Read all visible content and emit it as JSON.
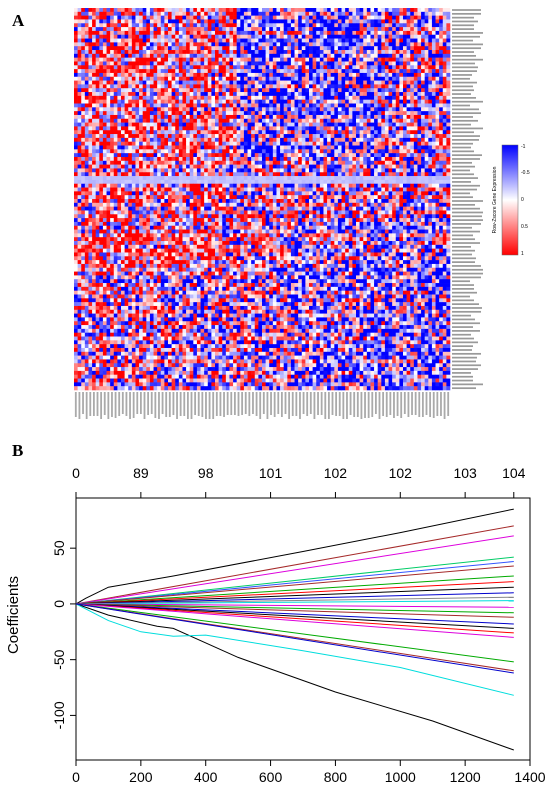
{
  "panel_labels": {
    "a": "A",
    "b": "B"
  },
  "colors": {
    "low": "#ff0000",
    "mid": "#ffffff",
    "high": "#0000ff",
    "axis": "#000000"
  },
  "chart_data": [
    {
      "type": "heatmap",
      "panel": "A",
      "rows": 100,
      "columns": 104,
      "color_scale": {
        "min": -1,
        "mid": 0,
        "max": 1,
        "colors": [
          "#ff0000",
          "#ffffff",
          "#0000ff"
        ]
      },
      "colorbar": {
        "label": "Row-Zscore Gene Expression",
        "ticks": [
          "1",
          "0.5",
          "0",
          "-0.5",
          "-1"
        ]
      },
      "row_labels_visible": true,
      "column_labels_visible": true
    },
    {
      "type": "line",
      "panel": "B",
      "ylabel": "Coefficients",
      "xlabel": "",
      "xlim": [
        0,
        1400
      ],
      "ylim": [
        -140,
        95
      ],
      "xticks": [
        "0",
        "200",
        "400",
        "600",
        "800",
        "1000",
        "1200",
        "1400"
      ],
      "yticks": [
        "-100",
        "-50",
        "0",
        "50"
      ],
      "top_axis_positions": [
        0,
        200,
        400,
        600,
        800,
        1000,
        1200,
        1350
      ],
      "top_axis_labels": [
        "0",
        "89",
        "98",
        "101",
        "102",
        "102",
        "103",
        "104"
      ],
      "series": [
        {
          "color": "#000000",
          "points": [
            [
              0,
              0
            ],
            [
              30,
              5
            ],
            [
              100,
              15
            ],
            [
              200,
              20
            ],
            [
              300,
              25
            ],
            [
              700,
              47
            ],
            [
              1000,
              64
            ],
            [
              1350,
              85
            ]
          ]
        },
        {
          "color": "#000000",
          "points": [
            [
              0,
              0
            ],
            [
              100,
              -10
            ],
            [
              250,
              -20
            ],
            [
              300,
              -22
            ],
            [
              500,
              -48
            ],
            [
              800,
              -79
            ],
            [
              1100,
              -105
            ],
            [
              1350,
              -131
            ]
          ]
        },
        {
          "color": "#00dddd",
          "points": [
            [
              0,
              0
            ],
            [
              100,
              -15
            ],
            [
              200,
              -25
            ],
            [
              300,
              -29
            ],
            [
              400,
              -28
            ],
            [
              700,
              -42
            ],
            [
              1000,
              -57
            ],
            [
              1350,
              -82
            ]
          ]
        },
        {
          "color": "#a52a2a",
          "points": [
            [
              0,
              0
            ],
            [
              1350,
              70
            ]
          ]
        },
        {
          "color": "#dd00dd",
          "points": [
            [
              0,
              0
            ],
            [
              1350,
              61
            ]
          ]
        },
        {
          "color": "#00cc66",
          "points": [
            [
              0,
              0
            ],
            [
              1350,
              42
            ]
          ]
        },
        {
          "color": "#3355ff",
          "points": [
            [
              0,
              0
            ],
            [
              1350,
              38
            ]
          ]
        },
        {
          "color": "#a52a2a",
          "points": [
            [
              0,
              0
            ],
            [
              1350,
              34
            ]
          ]
        },
        {
          "color": "#00aa00",
          "points": [
            [
              0,
              0
            ],
            [
              1350,
              25
            ]
          ]
        },
        {
          "color": "#ff0000",
          "points": [
            [
              0,
              0
            ],
            [
              1350,
              20
            ]
          ]
        },
        {
          "color": "#000000",
          "points": [
            [
              0,
              0
            ],
            [
              1350,
              15
            ]
          ]
        },
        {
          "color": "#0000cc",
          "points": [
            [
              0,
              0
            ],
            [
              1350,
              10
            ]
          ]
        },
        {
          "color": "#888888",
          "points": [
            [
              0,
              0
            ],
            [
              1350,
              6
            ]
          ]
        },
        {
          "color": "#00dddd",
          "points": [
            [
              0,
              0
            ],
            [
              1350,
              3
            ]
          ]
        },
        {
          "color": "#dd00dd",
          "points": [
            [
              0,
              0
            ],
            [
              1350,
              -3
            ]
          ]
        },
        {
          "color": "#00aa00",
          "points": [
            [
              0,
              0
            ],
            [
              1350,
              -8
            ]
          ]
        },
        {
          "color": "#a52a2a",
          "points": [
            [
              0,
              0
            ],
            [
              1350,
              -12
            ]
          ]
        },
        {
          "color": "#0000cc",
          "points": [
            [
              0,
              0
            ],
            [
              1350,
              -18
            ]
          ]
        },
        {
          "color": "#000000",
          "points": [
            [
              0,
              0
            ],
            [
              1350,
              -22
            ]
          ]
        },
        {
          "color": "#ff0000",
          "points": [
            [
              0,
              0
            ],
            [
              1350,
              -26
            ]
          ]
        },
        {
          "color": "#dd00dd",
          "points": [
            [
              0,
              0
            ],
            [
              1350,
              -30
            ]
          ]
        },
        {
          "color": "#00aa00",
          "points": [
            [
              0,
              0
            ],
            [
              1350,
              -52
            ]
          ]
        },
        {
          "color": "#a52a2a",
          "points": [
            [
              0,
              0
            ],
            [
              1350,
              -60
            ]
          ]
        },
        {
          "color": "#0000cc",
          "points": [
            [
              0,
              0
            ],
            [
              1350,
              -62
            ]
          ]
        }
      ]
    }
  ]
}
